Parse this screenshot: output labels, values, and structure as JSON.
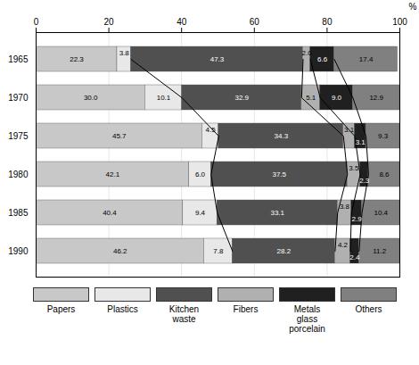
{
  "chart_data": {
    "type": "bar",
    "orientation": "horizontal",
    "stacked": true,
    "data_labels": true,
    "grid": true,
    "legend": "bottom",
    "xlabel": "%",
    "xlim": [
      0,
      100
    ],
    "xticks": [
      0,
      20,
      40,
      60,
      80,
      100
    ],
    "categories": [
      "1965",
      "1970",
      "1975",
      "1980",
      "1985",
      "1990"
    ],
    "series": [
      {
        "name": "Papers",
        "color": "#c8c8c8",
        "values": [
          22.3,
          30.0,
          45.7,
          42.1,
          40.4,
          46.2
        ],
        "value_labels": [
          "22.3",
          "30.0",
          "45.7",
          "42.1",
          "40.4",
          "46.2"
        ]
      },
      {
        "name": "Plastics",
        "color": "#e8e8e8",
        "values": [
          3.8,
          10.1,
          4.5,
          6.0,
          9.4,
          7.8
        ],
        "value_labels": [
          "3.8",
          "10.1",
          "4.5",
          "6.0",
          "9.4",
          "7.8"
        ]
      },
      {
        "name": "Kitchen\nwaste",
        "color": "#505050",
        "values": [
          47.3,
          32.9,
          34.3,
          37.5,
          33.1,
          28.2
        ],
        "value_labels": [
          "47.3",
          "32.9",
          "34.3",
          "37.5",
          "33.1",
          "28.2"
        ]
      },
      {
        "name": "Fibers",
        "color": "#b0b0b0",
        "values": [
          2.0,
          5.1,
          3.1,
          3.5,
          3.8,
          4.2
        ],
        "value_labels": [
          "2.0",
          "5.1",
          "3.1",
          "3.5",
          "3.8",
          "4.2"
        ]
      },
      {
        "name": "Metals\nglass\nporcelain",
        "color": "#202020",
        "values": [
          6.6,
          9.0,
          3.1,
          2.3,
          2.9,
          2.4
        ],
        "value_labels": [
          "6.6",
          "9.0",
          "3.1",
          "2.3",
          "2.9",
          "2.4"
        ]
      },
      {
        "name": "Others",
        "color": "#808080",
        "values": [
          17.4,
          12.9,
          9.3,
          8.6,
          10.4,
          11.2
        ],
        "value_labels": [
          "17.4",
          "12.9",
          "9.3",
          "8.6",
          "10.4",
          "11.2"
        ]
      }
    ]
  }
}
